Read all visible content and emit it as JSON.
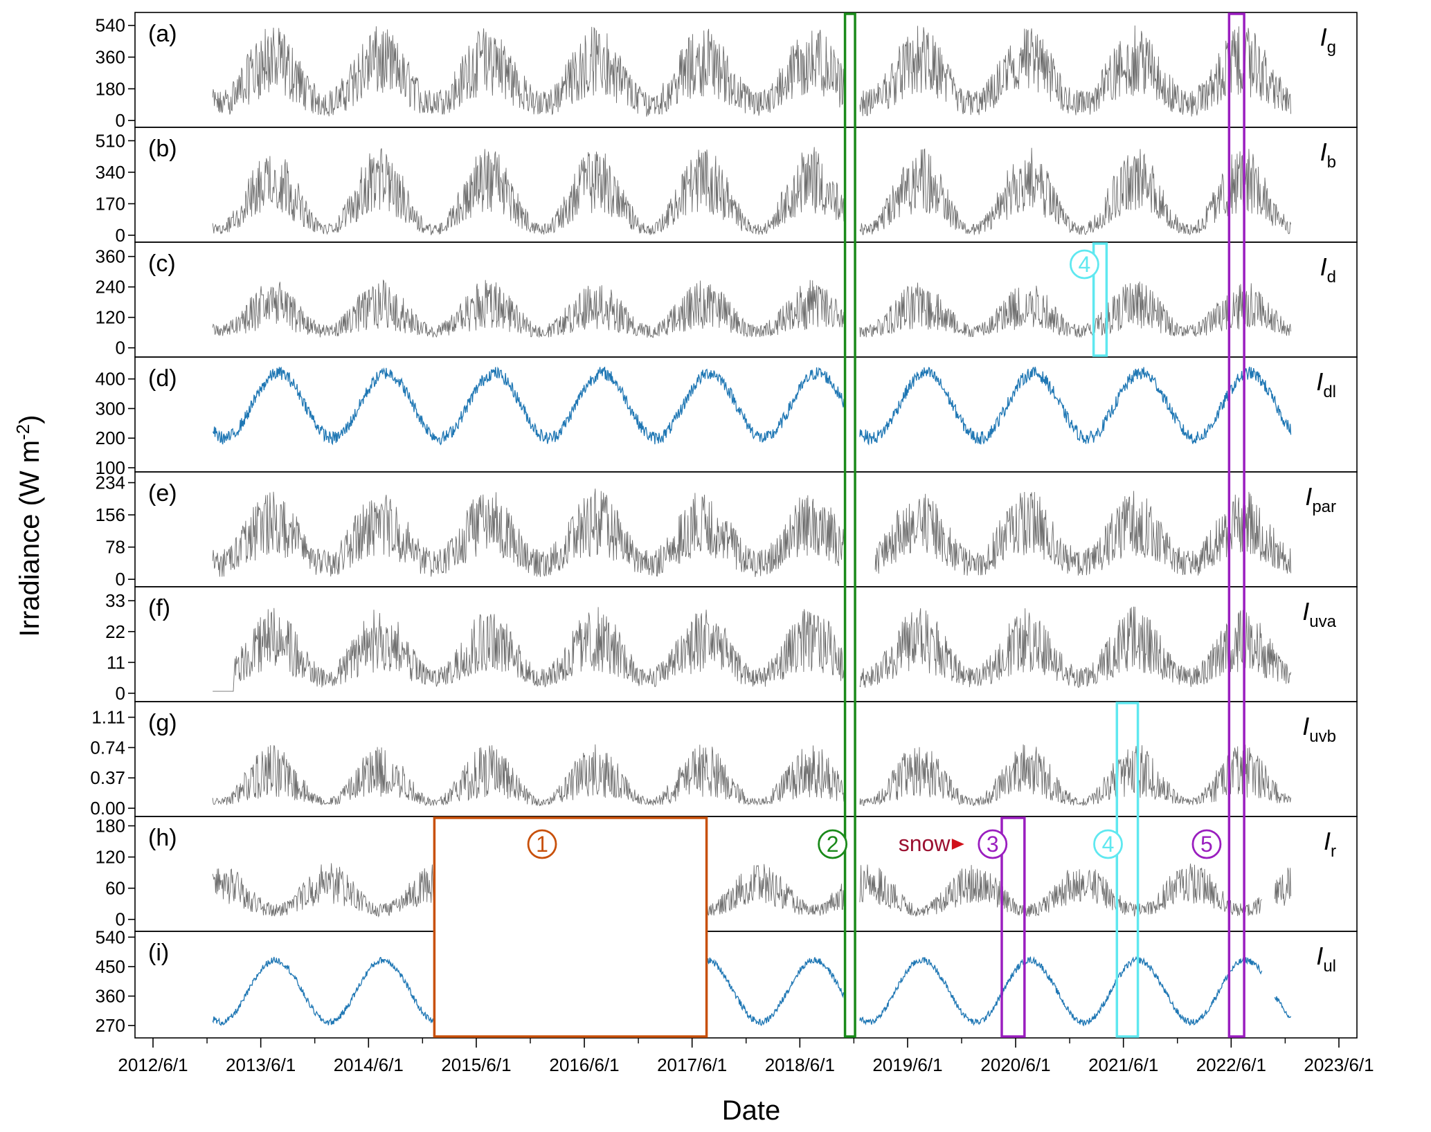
{
  "chart_data": {
    "type": "line",
    "xlabel": "Date",
    "ylabel": "Irradiance (W m",
    "ylabel_sup": "-2",
    "ylabel_close": ")",
    "x_range": [
      "2012-04-01",
      "2023-08-01"
    ],
    "x_ticks": [
      "2012/6/1",
      "2013/6/1",
      "2014/6/1",
      "2015/6/1",
      "2016/6/1",
      "2017/6/1",
      "2018/6/1",
      "2019/6/1",
      "2020/6/1",
      "2021/6/1",
      "2022/6/1",
      "2023/6/1"
    ],
    "panels": [
      {
        "letter": "(a)",
        "name": "I",
        "sub": "g",
        "color": "#6e6e6e",
        "ylim": [
          -15,
          590
        ],
        "yticks": [
          "0",
          "180",
          "360",
          "540"
        ],
        "ytick_values": [
          0,
          180,
          360,
          540
        ],
        "envelope": {
          "low_min": 20,
          "low_max": 170,
          "high_min": 280,
          "high_max": 540,
          "summer_peak": "2013-07-10"
        },
        "gaps": [
          [
            "2018-11-01",
            "2018-12-20"
          ]
        ],
        "start": "2012-12-20",
        "end": "2022-12-20"
      },
      {
        "letter": "(b)",
        "name": "I",
        "sub": "b",
        "color": "#6e6e6e",
        "ylim": [
          -15,
          560
        ],
        "yticks": [
          "0",
          "170",
          "340",
          "510"
        ],
        "ytick_values": [
          0,
          170,
          340,
          510
        ],
        "envelope": {
          "low_min": 0,
          "low_max": 60,
          "high_min": 260,
          "high_max": 480,
          "summer_peak": "2013-07-10"
        },
        "gaps": [
          [
            "2018-11-01",
            "2018-12-20"
          ]
        ],
        "start": "2012-12-20",
        "end": "2022-12-20"
      },
      {
        "letter": "(c)",
        "name": "I",
        "sub": "d",
        "color": "#6e6e6e",
        "ylim": [
          -20,
          400
        ],
        "yticks": [
          "0",
          "120",
          "240",
          "360"
        ],
        "ytick_values": [
          0,
          120,
          240,
          360
        ],
        "envelope": {
          "low_min": 40,
          "low_max": 90,
          "high_min": 110,
          "high_max": 270,
          "summer_peak": "2013-07-10"
        },
        "gaps": [
          [
            "2018-11-01",
            "2018-12-20"
          ]
        ],
        "start": "2012-12-20",
        "end": "2022-12-20"
      },
      {
        "letter": "(d)",
        "name": "I",
        "sub": "dl",
        "color": "#1f77b4",
        "ylim": [
          100,
          460
        ],
        "yticks": [
          "100",
          "200",
          "300",
          "400"
        ],
        "ytick_values": [
          100,
          200,
          300,
          400
        ],
        "envelope": {
          "winter_mean": 200,
          "summer_mean": 420,
          "noise": 22,
          "summer_peak": "2013-08-01"
        },
        "gaps": [
          [
            "2018-11-01",
            "2018-12-20"
          ]
        ],
        "start": "2012-12-20",
        "end": "2022-12-20"
      },
      {
        "letter": "(e)",
        "name": "I",
        "sub": "par",
        "color": "#6e6e6e",
        "ylim": [
          -8,
          250
        ],
        "yticks": [
          "0",
          "78",
          "156",
          "234"
        ],
        "ytick_values": [
          0,
          78,
          156,
          234
        ],
        "envelope": {
          "low_min": 5,
          "low_max": 70,
          "high_min": 120,
          "high_max": 220,
          "summer_peak": "2013-07-10"
        },
        "gaps": [
          [
            "2018-11-01",
            "2019-02-10"
          ]
        ],
        "start": "2012-12-20",
        "end": "2022-12-20"
      },
      {
        "letter": "(f)",
        "name": "I",
        "sub": "uva",
        "color": "#6e6e6e",
        "ylim": [
          -1.5,
          36.5
        ],
        "yticks": [
          "0",
          "11",
          "22",
          "33"
        ],
        "ytick_values": [
          0,
          11,
          22,
          33
        ],
        "envelope": {
          "low_min": 2,
          "low_max": 9,
          "high_min": 14,
          "high_max": 31,
          "summer_peak": "2013-07-10"
        },
        "flat": [
          [
            "2012-12-20",
            "2013-03-01",
            0.7
          ]
        ],
        "gaps": [
          [
            "2018-11-01",
            "2018-12-20"
          ]
        ],
        "start": "2012-12-20",
        "end": "2022-12-20"
      },
      {
        "letter": "(g)",
        "name": "I",
        "sub": "uvb",
        "color": "#6e6e6e",
        "ylim": [
          -0.05,
          1.25
        ],
        "yticks": [
          "0.00",
          "0.37",
          "0.74",
          "1.11"
        ],
        "ytick_values": [
          0,
          0.37,
          0.74,
          1.11
        ],
        "envelope": {
          "low_min": 0.03,
          "low_max": 0.12,
          "high_min": 0.25,
          "high_max": 0.8,
          "summer_peak": "2013-07-10"
        },
        "gaps": [
          [
            "2018-11-01",
            "2018-12-20"
          ]
        ],
        "start": "2012-12-20",
        "end": "2022-12-20"
      },
      {
        "letter": "(h)",
        "name": "I",
        "sub": "r",
        "color": "#6e6e6e",
        "ylim": [
          -15,
          190
        ],
        "yticks": [
          "0",
          "60",
          "120",
          "180"
        ],
        "ytick_values": [
          0,
          60,
          120,
          180
        ],
        "envelope": {
          "low_min": 5,
          "low_max": 30,
          "high_min": 60,
          "high_max": 110,
          "summer_peak": "2013-01-15"
        },
        "gaps": [
          [
            "2015-01-10",
            "2017-07-20"
          ],
          [
            "2018-11-01",
            "2018-12-20"
          ],
          [
            "2022-09-15",
            "2022-10-25"
          ]
        ],
        "start": "2012-12-20",
        "end": "2022-12-20"
      },
      {
        "letter": "(i)",
        "name": "I",
        "sub": "ul",
        "color": "#1f77b4",
        "ylim": [
          245,
          545
        ],
        "yticks": [
          "270",
          "360",
          "450",
          "540"
        ],
        "ytick_values": [
          270,
          360,
          450,
          540
        ],
        "envelope": {
          "winter_mean": 280,
          "summer_mean": 470,
          "noise": 10,
          "summer_peak": "2013-07-20"
        },
        "gaps": [
          [
            "2015-01-10",
            "2017-07-20"
          ],
          [
            "2018-11-01",
            "2018-12-20"
          ],
          [
            "2022-09-15",
            "2022-10-25"
          ]
        ],
        "start": "2012-12-20",
        "end": "2022-12-20"
      }
    ],
    "annotations": {
      "boxes": [
        {
          "id": "1",
          "color": "#c8500a",
          "x0": "2015-01-10",
          "x1": "2017-07-20",
          "panel_from": 7,
          "panel_to": 8
        },
        {
          "id": "2",
          "color": "#1a8a1a",
          "x0": "2018-11-01",
          "x1": "2018-12-05",
          "panel_from": 0,
          "panel_to": 8
        },
        {
          "id": "3",
          "color": "#9a1ebf",
          "x0": "2020-04-15",
          "x1": "2020-07-01",
          "panel_from": 7,
          "panel_to": 8
        },
        {
          "id": "4a",
          "color": "#5fe8f0",
          "x0": "2021-02-20",
          "x1": "2021-04-05",
          "panel_from": 2,
          "panel_to": 2
        },
        {
          "id": "4b",
          "color": "#5fe8f0",
          "x0": "2021-05-10",
          "x1": "2021-07-20",
          "panel_from": 6,
          "panel_to": 8
        },
        {
          "id": "5",
          "color": "#9a1ebf",
          "x0": "2022-05-25",
          "x1": "2022-07-15",
          "panel_from": 0,
          "panel_to": 8
        }
      ],
      "circled_labels": [
        {
          "text": "1",
          "color": "#c8500a"
        },
        {
          "text": "2",
          "color": "#1a8a1a"
        },
        {
          "text": "3",
          "color": "#9a1ebf"
        },
        {
          "text": "4",
          "color": "#5fe8f0"
        },
        {
          "text": "4",
          "color": "#5fe8f0"
        },
        {
          "text": "5",
          "color": "#9a1ebf"
        }
      ],
      "snow": {
        "text": "snow",
        "color": "#9b1030",
        "arrow_color": "#d0101a"
      }
    }
  }
}
